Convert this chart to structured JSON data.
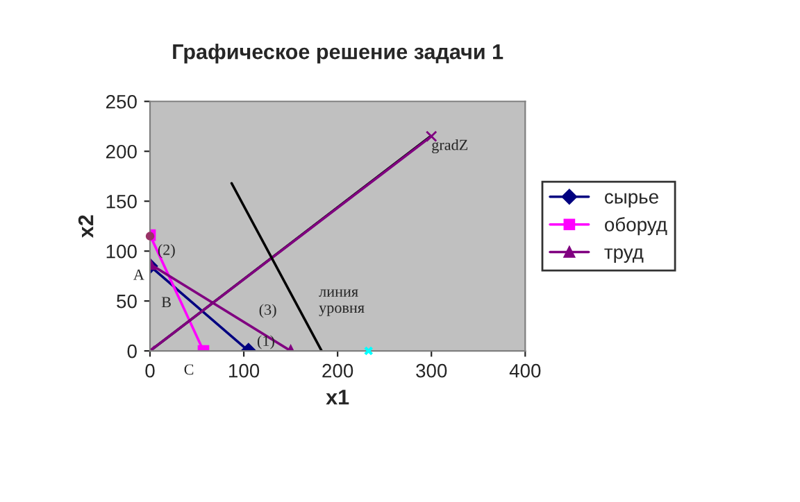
{
  "chart_data": {
    "type": "line",
    "title": "Графическое решение задачи 1",
    "xlabel": "x1",
    "ylabel": "x2",
    "xlim": [
      0,
      400
    ],
    "ylim": [
      0,
      250
    ],
    "xticks": [
      0,
      100,
      200,
      300,
      400
    ],
    "yticks": [
      0,
      50,
      100,
      150,
      200,
      250
    ],
    "grid": false,
    "legend": "right",
    "series": [
      {
        "name": "сырье",
        "color": "#000080",
        "marker": "diamond",
        "x": [
          0,
          105
        ],
        "values": [
          85,
          0
        ]
      },
      {
        "name": "оборуд",
        "color": "#ff00ff",
        "marker": "square",
        "x": [
          0,
          57
        ],
        "values": [
          116,
          0
        ]
      },
      {
        "name": "труд",
        "color": "#800080",
        "marker": "triangle",
        "x": [
          0,
          150
        ],
        "values": [
          87,
          0
        ]
      },
      {
        "color": "#000000",
        "marker": "none",
        "x": [
          0,
          299
        ],
        "values": [
          0,
          215
        ]
      },
      {
        "color": "#800080",
        "marker": "cross",
        "x": [
          0,
          300
        ],
        "values": [
          0,
          215
        ]
      },
      {
        "color": "#000000",
        "marker": "none",
        "x": [
          87,
          183
        ],
        "values": [
          168,
          0
        ]
      },
      {
        "type": "scatter",
        "color": "#993366",
        "marker": "circle",
        "x": [
          0
        ],
        "values": [
          115
        ]
      },
      {
        "type": "scatter",
        "color": "#00ffff",
        "marker": "cross",
        "x": [
          233
        ],
        "values": [
          0
        ]
      }
    ],
    "annotations": [
      "gradZ",
      {
        "text": "(2)",
        "x": 8,
        "y": 100
      },
      "A",
      "B",
      "C",
      "(1)",
      "(3)",
      "линия\nуровня"
    ]
  }
}
